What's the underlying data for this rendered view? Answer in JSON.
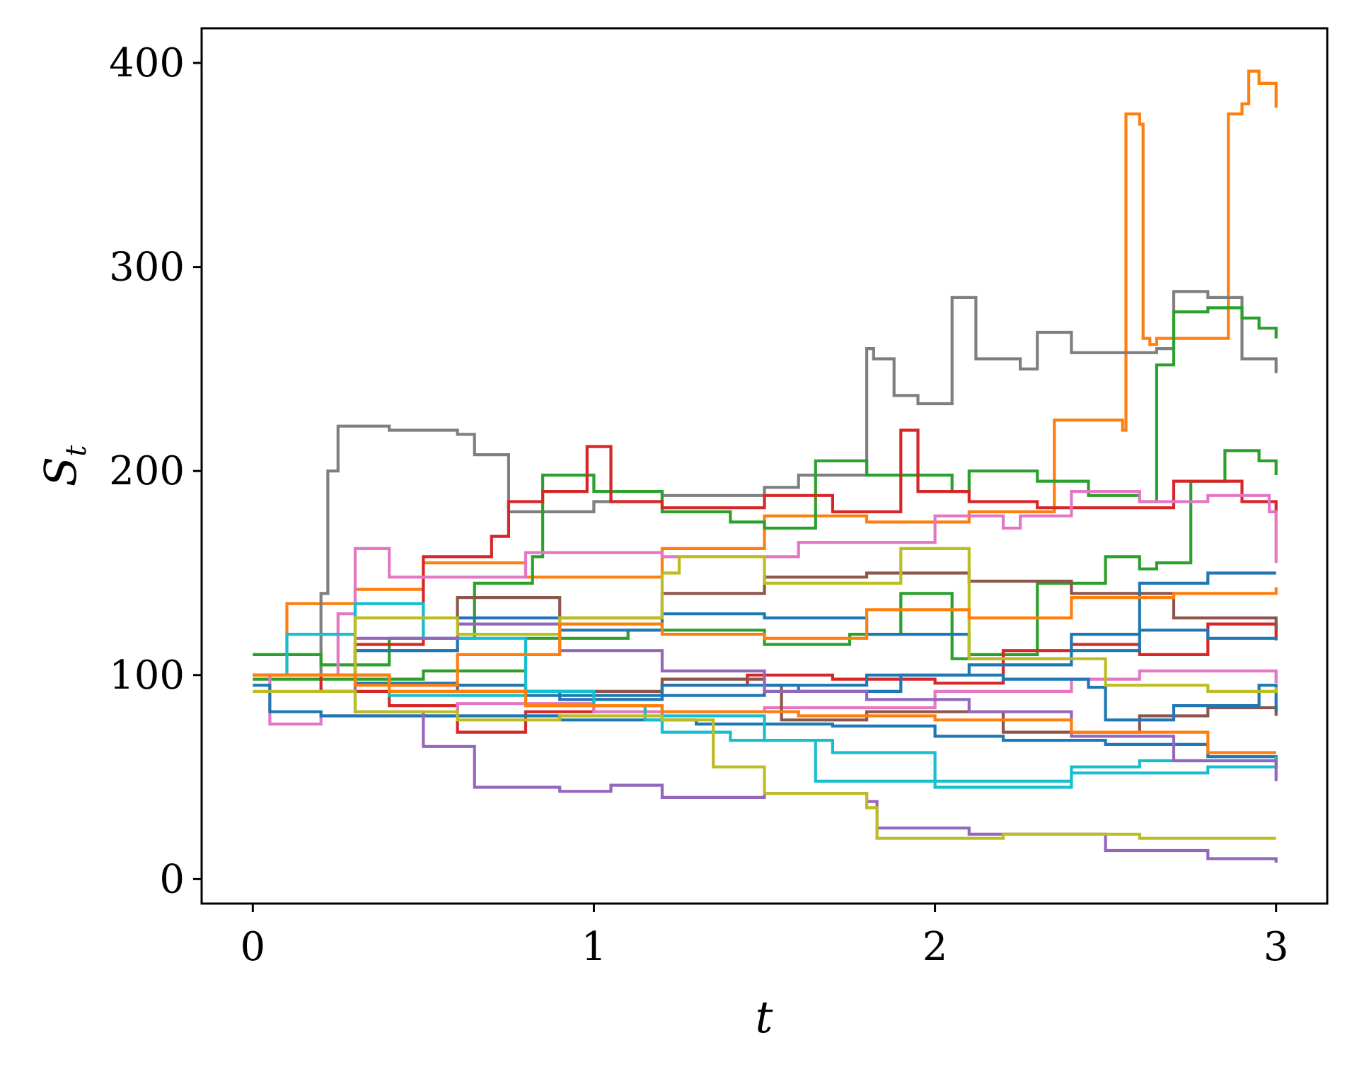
{
  "chart_data": {
    "type": "line",
    "title": "",
    "xlabel": "t",
    "ylabel": {
      "main": "S",
      "sub": "t"
    },
    "xlim": [
      -0.15,
      3.15
    ],
    "ylim": [
      -12,
      417
    ],
    "x_ticks": [
      {
        "value": 0,
        "label": "0"
      },
      {
        "value": 1,
        "label": "1"
      },
      {
        "value": 2,
        "label": "2"
      },
      {
        "value": 3,
        "label": "3"
      }
    ],
    "y_ticks": [
      {
        "value": 0,
        "label": "0"
      },
      {
        "value": 100,
        "label": "100"
      },
      {
        "value": 200,
        "label": "200"
      },
      {
        "value": 300,
        "label": "300"
      },
      {
        "value": 400,
        "label": "400"
      }
    ],
    "grid": false,
    "legend": "none",
    "series": [
      {
        "color": "#ff7f0e",
        "x": [
          0,
          0.1,
          0.3,
          0.5,
          0.8,
          1.2,
          1.5,
          1.8,
          2.1,
          2.35,
          2.55,
          2.56,
          2.6,
          2.61,
          2.63,
          2.65,
          2.7,
          2.85,
          2.86,
          2.9,
          2.92,
          2.95,
          3.0
        ],
        "y": [
          100,
          135,
          142,
          155,
          148,
          162,
          178,
          175,
          180,
          225,
          220,
          375,
          370,
          265,
          262,
          265,
          265,
          265,
          375,
          380,
          396,
          390,
          378
        ]
      },
      {
        "color": "#7f7f7f",
        "x": [
          0,
          0.2,
          0.22,
          0.25,
          0.4,
          0.6,
          0.65,
          0.75,
          1.0,
          1.2,
          1.5,
          1.6,
          1.8,
          1.82,
          1.88,
          1.95,
          2.05,
          2.12,
          2.25,
          2.3,
          2.4,
          2.65,
          2.7,
          2.8,
          2.9,
          3.0
        ],
        "y": [
          100,
          140,
          200,
          222,
          220,
          218,
          208,
          180,
          185,
          188,
          192,
          198,
          260,
          255,
          237,
          233,
          285,
          255,
          250,
          268,
          258,
          260,
          288,
          285,
          255,
          248
        ]
      },
      {
        "color": "#2ca02c",
        "x": [
          0,
          0.2,
          0.4,
          0.65,
          0.82,
          0.85,
          1.0,
          1.2,
          1.4,
          1.5,
          1.65,
          1.8,
          2.05,
          2.1,
          2.3,
          2.45,
          2.6,
          2.65,
          2.7,
          2.8,
          2.9,
          2.95,
          3.0
        ],
        "y": [
          110,
          105,
          118,
          145,
          158,
          198,
          190,
          180,
          175,
          172,
          205,
          198,
          190,
          200,
          195,
          188,
          185,
          252,
          278,
          280,
          275,
          270,
          265
        ]
      },
      {
        "color": "#2ca02c",
        "x": [
          0,
          0.5,
          0.8,
          1.1,
          1.5,
          1.75,
          1.9,
          2.05,
          2.1,
          2.3,
          2.5,
          2.6,
          2.65,
          2.75,
          2.85,
          2.95,
          3.0
        ],
        "y": [
          98,
          102,
          118,
          122,
          115,
          120,
          140,
          108,
          110,
          145,
          158,
          152,
          155,
          195,
          210,
          205,
          198
        ]
      },
      {
        "color": "#d62728",
        "x": [
          0,
          0.3,
          0.5,
          0.7,
          0.75,
          0.85,
          0.98,
          1.05,
          1.2,
          1.5,
          1.7,
          1.9,
          1.95,
          2.1,
          2.3,
          2.5,
          2.7,
          2.9,
          3.0
        ],
        "y": [
          100,
          115,
          158,
          168,
          185,
          190,
          212,
          185,
          182,
          188,
          180,
          220,
          190,
          185,
          182,
          182,
          195,
          185,
          180
        ]
      },
      {
        "color": "#d62728",
        "x": [
          0,
          0.2,
          0.4,
          0.6,
          0.8,
          1.0,
          1.2,
          1.45,
          1.7,
          2.0,
          2.2,
          2.4,
          2.6,
          2.8,
          3.0
        ],
        "y": [
          100,
          92,
          85,
          72,
          82,
          88,
          95,
          100,
          98,
          96,
          112,
          115,
          110,
          125,
          118
        ]
      },
      {
        "color": "#e377c2",
        "x": [
          0,
          0.25,
          0.3,
          0.4,
          0.8,
          1.2,
          1.6,
          2.0,
          2.2,
          2.25,
          2.4,
          2.6,
          2.8,
          2.98,
          3.0
        ],
        "y": [
          100,
          130,
          162,
          148,
          160,
          158,
          165,
          178,
          172,
          178,
          190,
          185,
          188,
          180,
          155
        ]
      },
      {
        "color": "#e377c2",
        "x": [
          0,
          0.05,
          0.2,
          0.6,
          1.0,
          1.5,
          2.0,
          2.4,
          2.6,
          3.0
        ],
        "y": [
          100,
          76,
          80,
          86,
          82,
          84,
          92,
          98,
          102,
          96
        ]
      },
      {
        "color": "#8c564b",
        "x": [
          0,
          0.3,
          0.6,
          0.9,
          1.2,
          1.5,
          1.8,
          2.1,
          2.4,
          2.7,
          3.0
        ],
        "y": [
          100,
          112,
          138,
          128,
          140,
          148,
          150,
          146,
          140,
          128,
          122
        ]
      },
      {
        "color": "#8c564b",
        "x": [
          0,
          0.4,
          0.8,
          1.2,
          1.5,
          1.55,
          1.8,
          2.2,
          2.6,
          2.8,
          3.0
        ],
        "y": [
          100,
          95,
          92,
          98,
          95,
          78,
          82,
          72,
          80,
          84,
          80
        ]
      },
      {
        "color": "#1f77b4",
        "x": [
          0,
          0.3,
          0.6,
          0.9,
          1.2,
          1.5,
          1.8,
          2.1,
          2.4,
          2.6,
          2.8,
          3.0
        ],
        "y": [
          100,
          112,
          128,
          122,
          130,
          128,
          120,
          108,
          120,
          145,
          150,
          150
        ]
      },
      {
        "color": "#1f77b4",
        "x": [
          0,
          0.3,
          0.6,
          0.9,
          1.2,
          1.5,
          1.8,
          2.1,
          2.4,
          2.6,
          2.8,
          3.0
        ],
        "y": [
          100,
          96,
          92,
          88,
          90,
          95,
          100,
          105,
          112,
          122,
          118,
          117
        ]
      },
      {
        "color": "#1f77b4",
        "x": [
          0,
          0.05,
          0.2,
          0.5,
          0.9,
          1.3,
          1.7,
          2.0,
          2.2,
          2.5,
          2.8,
          3.0
        ],
        "y": [
          95,
          82,
          80,
          80,
          78,
          76,
          75,
          70,
          68,
          66,
          60,
          55
        ]
      },
      {
        "color": "#1f77b4",
        "x": [
          0,
          0.4,
          0.8,
          1.2,
          1.6,
          1.9,
          2.2,
          2.45,
          2.5,
          2.7,
          2.95,
          3.0
        ],
        "y": [
          100,
          95,
          90,
          95,
          92,
          100,
          98,
          94,
          78,
          85,
          95,
          82
        ]
      },
      {
        "color": "#17becf",
        "x": [
          0,
          0.1,
          0.3,
          0.5,
          0.8,
          1.0,
          1.15,
          1.2,
          1.4,
          1.7,
          2.0,
          2.4,
          2.6,
          3.0
        ],
        "y": [
          100,
          120,
          135,
          118,
          92,
          85,
          78,
          72,
          68,
          62,
          48,
          55,
          58,
          60
        ]
      },
      {
        "color": "#17becf",
        "x": [
          0,
          0.4,
          0.8,
          1.2,
          1.5,
          1.65,
          2.0,
          2.4,
          2.8,
          3.0
        ],
        "y": [
          100,
          90,
          85,
          80,
          68,
          48,
          45,
          52,
          55,
          54
        ]
      },
      {
        "color": "#9467bd",
        "x": [
          0,
          0.3,
          0.5,
          0.65,
          0.9,
          1.05,
          1.2,
          1.5,
          1.8,
          1.83,
          2.1,
          2.5,
          2.8,
          3.0
        ],
        "y": [
          100,
          82,
          65,
          45,
          43,
          46,
          40,
          42,
          38,
          25,
          22,
          14,
          10,
          8
        ]
      },
      {
        "color": "#9467bd",
        "x": [
          0,
          0.3,
          0.6,
          0.9,
          1.2,
          1.5,
          1.8,
          2.1,
          2.4,
          2.7,
          3.0
        ],
        "y": [
          100,
          118,
          125,
          112,
          102,
          92,
          88,
          82,
          70,
          58,
          48
        ]
      },
      {
        "color": "#bcbd22",
        "x": [
          0,
          0.3,
          0.6,
          0.9,
          1.2,
          1.25,
          1.5,
          1.9,
          2.1,
          2.5,
          2.8,
          3.0
        ],
        "y": [
          100,
          128,
          120,
          128,
          150,
          158,
          145,
          162,
          108,
          95,
          92,
          94
        ]
      },
      {
        "color": "#bcbd22",
        "x": [
          0,
          0.3,
          0.6,
          0.9,
          1.2,
          1.35,
          1.5,
          1.8,
          1.83,
          2.2,
          2.6,
          3.0
        ],
        "y": [
          92,
          82,
          78,
          80,
          78,
          55,
          42,
          35,
          20,
          22,
          20,
          20
        ]
      },
      {
        "color": "#ff7f0e",
        "x": [
          0,
          0.3,
          0.6,
          0.9,
          1.2,
          1.5,
          1.8,
          2.1,
          2.4,
          2.7,
          3.0
        ],
        "y": [
          100,
          95,
          110,
          125,
          120,
          118,
          132,
          128,
          138,
          140,
          143
        ]
      },
      {
        "color": "#ff7f0e",
        "x": [
          0,
          0.4,
          0.8,
          1.2,
          1.6,
          2.0,
          2.4,
          2.8,
          3.0
        ],
        "y": [
          100,
          92,
          85,
          82,
          80,
          78,
          72,
          62,
          62
        ]
      }
    ]
  }
}
